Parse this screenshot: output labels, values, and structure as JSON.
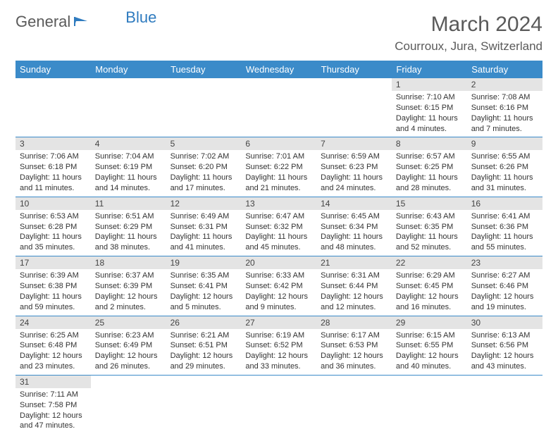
{
  "logo": {
    "text1": "General",
    "text2": "Blue"
  },
  "title": "March 2024",
  "location": "Courroux, Jura, Switzerland",
  "colors": {
    "header_bg": "#3b8bc9",
    "header_text": "#ffffff",
    "daynum_bg": "#e4e4e4",
    "border": "#3b8bc9",
    "text": "#333333",
    "logo_gray": "#5a5a5a",
    "logo_blue": "#2f7bbf"
  },
  "day_headers": [
    "Sunday",
    "Monday",
    "Tuesday",
    "Wednesday",
    "Thursday",
    "Friday",
    "Saturday"
  ],
  "weeks": [
    [
      null,
      null,
      null,
      null,
      null,
      {
        "n": "1",
        "sunrise": "7:10 AM",
        "sunset": "6:15 PM",
        "dl": "11 hours and 4 minutes."
      },
      {
        "n": "2",
        "sunrise": "7:08 AM",
        "sunset": "6:16 PM",
        "dl": "11 hours and 7 minutes."
      }
    ],
    [
      {
        "n": "3",
        "sunrise": "7:06 AM",
        "sunset": "6:18 PM",
        "dl": "11 hours and 11 minutes."
      },
      {
        "n": "4",
        "sunrise": "7:04 AM",
        "sunset": "6:19 PM",
        "dl": "11 hours and 14 minutes."
      },
      {
        "n": "5",
        "sunrise": "7:02 AM",
        "sunset": "6:20 PM",
        "dl": "11 hours and 17 minutes."
      },
      {
        "n": "6",
        "sunrise": "7:01 AM",
        "sunset": "6:22 PM",
        "dl": "11 hours and 21 minutes."
      },
      {
        "n": "7",
        "sunrise": "6:59 AM",
        "sunset": "6:23 PM",
        "dl": "11 hours and 24 minutes."
      },
      {
        "n": "8",
        "sunrise": "6:57 AM",
        "sunset": "6:25 PM",
        "dl": "11 hours and 28 minutes."
      },
      {
        "n": "9",
        "sunrise": "6:55 AM",
        "sunset": "6:26 PM",
        "dl": "11 hours and 31 minutes."
      }
    ],
    [
      {
        "n": "10",
        "sunrise": "6:53 AM",
        "sunset": "6:28 PM",
        "dl": "11 hours and 35 minutes."
      },
      {
        "n": "11",
        "sunrise": "6:51 AM",
        "sunset": "6:29 PM",
        "dl": "11 hours and 38 minutes."
      },
      {
        "n": "12",
        "sunrise": "6:49 AM",
        "sunset": "6:31 PM",
        "dl": "11 hours and 41 minutes."
      },
      {
        "n": "13",
        "sunrise": "6:47 AM",
        "sunset": "6:32 PM",
        "dl": "11 hours and 45 minutes."
      },
      {
        "n": "14",
        "sunrise": "6:45 AM",
        "sunset": "6:34 PM",
        "dl": "11 hours and 48 minutes."
      },
      {
        "n": "15",
        "sunrise": "6:43 AM",
        "sunset": "6:35 PM",
        "dl": "11 hours and 52 minutes."
      },
      {
        "n": "16",
        "sunrise": "6:41 AM",
        "sunset": "6:36 PM",
        "dl": "11 hours and 55 minutes."
      }
    ],
    [
      {
        "n": "17",
        "sunrise": "6:39 AM",
        "sunset": "6:38 PM",
        "dl": "11 hours and 59 minutes."
      },
      {
        "n": "18",
        "sunrise": "6:37 AM",
        "sunset": "6:39 PM",
        "dl": "12 hours and 2 minutes."
      },
      {
        "n": "19",
        "sunrise": "6:35 AM",
        "sunset": "6:41 PM",
        "dl": "12 hours and 5 minutes."
      },
      {
        "n": "20",
        "sunrise": "6:33 AM",
        "sunset": "6:42 PM",
        "dl": "12 hours and 9 minutes."
      },
      {
        "n": "21",
        "sunrise": "6:31 AM",
        "sunset": "6:44 PM",
        "dl": "12 hours and 12 minutes."
      },
      {
        "n": "22",
        "sunrise": "6:29 AM",
        "sunset": "6:45 PM",
        "dl": "12 hours and 16 minutes."
      },
      {
        "n": "23",
        "sunrise": "6:27 AM",
        "sunset": "6:46 PM",
        "dl": "12 hours and 19 minutes."
      }
    ],
    [
      {
        "n": "24",
        "sunrise": "6:25 AM",
        "sunset": "6:48 PM",
        "dl": "12 hours and 23 minutes."
      },
      {
        "n": "25",
        "sunrise": "6:23 AM",
        "sunset": "6:49 PM",
        "dl": "12 hours and 26 minutes."
      },
      {
        "n": "26",
        "sunrise": "6:21 AM",
        "sunset": "6:51 PM",
        "dl": "12 hours and 29 minutes."
      },
      {
        "n": "27",
        "sunrise": "6:19 AM",
        "sunset": "6:52 PM",
        "dl": "12 hours and 33 minutes."
      },
      {
        "n": "28",
        "sunrise": "6:17 AM",
        "sunset": "6:53 PM",
        "dl": "12 hours and 36 minutes."
      },
      {
        "n": "29",
        "sunrise": "6:15 AM",
        "sunset": "6:55 PM",
        "dl": "12 hours and 40 minutes."
      },
      {
        "n": "30",
        "sunrise": "6:13 AM",
        "sunset": "6:56 PM",
        "dl": "12 hours and 43 minutes."
      }
    ],
    [
      {
        "n": "31",
        "sunrise": "7:11 AM",
        "sunset": "7:58 PM",
        "dl": "12 hours and 47 minutes."
      },
      null,
      null,
      null,
      null,
      null,
      null
    ]
  ],
  "labels": {
    "sunrise": "Sunrise: ",
    "sunset": "Sunset: ",
    "daylight": "Daylight: "
  }
}
